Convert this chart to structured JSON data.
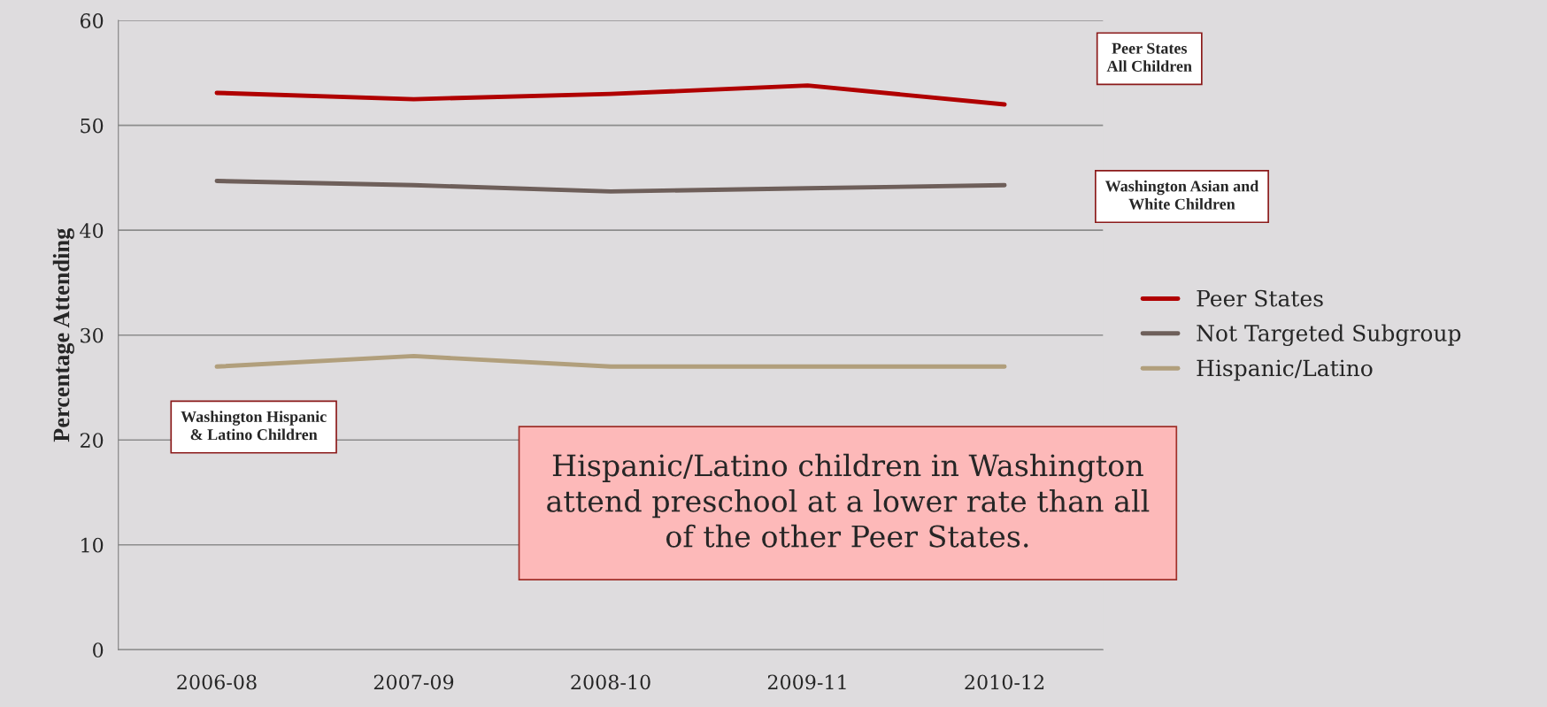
{
  "chart_data": {
    "type": "line",
    "ylabel": "Percentage Attending",
    "categories": [
      "2006-08",
      "2007-09",
      "2008-10",
      "2009-11",
      "2010-12"
    ],
    "series": [
      {
        "name": "Peer States",
        "color": "#b00000",
        "values": [
          53.1,
          52.5,
          53.0,
          53.8,
          52.0
        ]
      },
      {
        "name": "Not Targeted Subgroup",
        "color": "#6e5f5a",
        "values": [
          44.7,
          44.3,
          43.7,
          44.0,
          44.3
        ]
      },
      {
        "name": "Hispanic/Latino",
        "color": "#b19f7c",
        "values": [
          27.0,
          28.0,
          27.0,
          27.0,
          27.0
        ]
      }
    ],
    "ylim": [
      0,
      60
    ],
    "yticks": [
      0,
      10,
      20,
      30,
      40,
      50,
      60
    ],
    "grid": "y",
    "legend": "right",
    "marker": "none",
    "line_style": "solid",
    "annotations": [
      "Peer States\nAll Children",
      "Washington Asian and\nWhite Children",
      "Washington Hispanic\n& Latino Children",
      "Hispanic/Latino children in Washington\nattend preschool at a lower rate than all\nof the other Peer States."
    ]
  }
}
